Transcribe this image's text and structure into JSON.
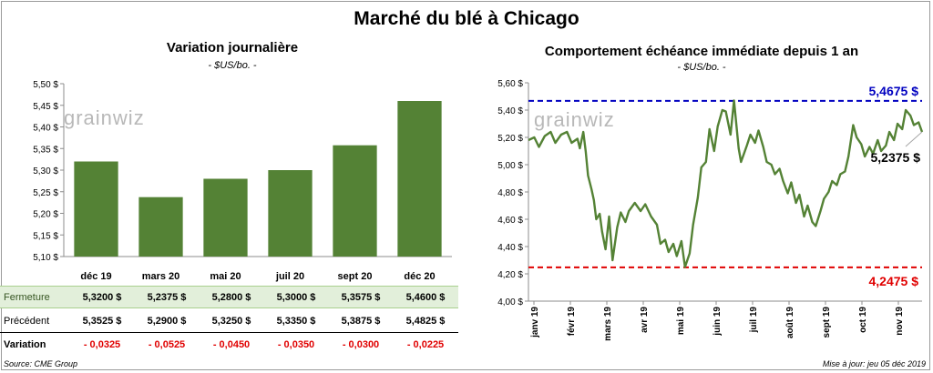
{
  "title": "Marché du blé à Chicago",
  "left": {
    "title": "Variation journalière",
    "unit": "- $US/bo. -",
    "watermark": "grainwiz",
    "row_labels": {
      "close": "Fermeture",
      "prev": "Précédent",
      "var": "Variation"
    },
    "close_values": [
      "5,3200  $",
      "5,2375  $",
      "5,2800  $",
      "5,3000  $",
      "5,3575  $",
      "5,4600  $"
    ],
    "prev_values": [
      "5,3525  $",
      "5,2900  $",
      "5,3250  $",
      "5,3350  $",
      "5,3875  $",
      "5,4825  $"
    ],
    "var_values": [
      "- 0,0325",
      "- 0,0525",
      "- 0,0450",
      "- 0,0350",
      "- 0,0300",
      "- 0,0225"
    ]
  },
  "right": {
    "title": "Comportement  échéance immédiate depuis 1 an",
    "unit": "- $US/bo. -",
    "watermark": "grainwiz",
    "max_label": "5,4675  $",
    "min_label": "4,2475  $",
    "last_label": "5,2375  $"
  },
  "footer": {
    "source": "Source: CME Group",
    "updated": "Mise à jour: jeu 05 déc 2019"
  },
  "chart_data": [
    {
      "type": "bar",
      "title": "Variation journalière",
      "categories": [
        "déc 19",
        "mars 20",
        "mai 20",
        "juil 20",
        "sept 20",
        "déc 20"
      ],
      "values": [
        5.32,
        5.2375,
        5.28,
        5.3,
        5.3575,
        5.46
      ],
      "ylim": [
        5.1,
        5.5
      ],
      "yticks": [
        "5,10 $",
        "5,15 $",
        "5,20 $",
        "5,25 $",
        "5,30 $",
        "5,35 $",
        "5,40 $",
        "5,45 $",
        "5,50 $"
      ],
      "colors": {
        "bar": "#548235"
      },
      "grid": false
    },
    {
      "type": "line",
      "title": "Comportement  échéance immédiate depuis 1 an",
      "ylim": [
        4.0,
        5.6
      ],
      "yticks": [
        "4,00 $",
        "4,20 $",
        "4,40 $",
        "4,60 $",
        "4,80 $",
        "5,00 $",
        "5,20 $",
        "5,40 $",
        "5,60 $"
      ],
      "xticks": [
        "janv 19",
        "févr 19",
        "mars 19",
        "avr 19",
        "mai 19",
        "juin 19",
        "juil 19",
        "août 19",
        "sept 19",
        "oct 19",
        "nov 19"
      ],
      "x_start": "2019-01-02",
      "x_end": "2019-12-05",
      "max": 5.4675,
      "min": 4.2475,
      "last": 5.2375,
      "colors": {
        "line": "#548235",
        "max": "#0000c0",
        "min": "#e00000"
      },
      "grid": false,
      "series": [
        {
          "values": [
            [
              "2019-01-02",
              5.18
            ],
            [
              "2019-01-07",
              5.2
            ],
            [
              "2019-01-11",
              5.13
            ],
            [
              "2019-01-16",
              5.21
            ],
            [
              "2019-01-21",
              5.24
            ],
            [
              "2019-01-25",
              5.16
            ],
            [
              "2019-01-30",
              5.22
            ],
            [
              "2019-02-04",
              5.24
            ],
            [
              "2019-02-08",
              5.16
            ],
            [
              "2019-02-13",
              5.19
            ],
            [
              "2019-02-15",
              5.12
            ],
            [
              "2019-02-18",
              5.24
            ],
            [
              "2019-02-20",
              5.1
            ],
            [
              "2019-02-22",
              4.92
            ],
            [
              "2019-02-25",
              4.82
            ],
            [
              "2019-02-27",
              4.74
            ],
            [
              "2019-03-01",
              4.6
            ],
            [
              "2019-03-04",
              4.64
            ],
            [
              "2019-03-06",
              4.51
            ],
            [
              "2019-03-09",
              4.38
            ],
            [
              "2019-03-12",
              4.62
            ],
            [
              "2019-03-15",
              4.3
            ],
            [
              "2019-03-19",
              4.54
            ],
            [
              "2019-03-22",
              4.65
            ],
            [
              "2019-03-26",
              4.58
            ],
            [
              "2019-03-29",
              4.66
            ],
            [
              "2019-04-03",
              4.72
            ],
            [
              "2019-04-08",
              4.66
            ],
            [
              "2019-04-12",
              4.71
            ],
            [
              "2019-04-17",
              4.62
            ],
            [
              "2019-04-22",
              4.56
            ],
            [
              "2019-04-25",
              4.42
            ],
            [
              "2019-04-29",
              4.45
            ],
            [
              "2019-05-02",
              4.36
            ],
            [
              "2019-05-06",
              4.42
            ],
            [
              "2019-05-09",
              4.33
            ],
            [
              "2019-05-13",
              4.44
            ],
            [
              "2019-05-16",
              4.25
            ],
            [
              "2019-05-20",
              4.35
            ],
            [
              "2019-05-23",
              4.56
            ],
            [
              "2019-05-27",
              4.76
            ],
            [
              "2019-05-30",
              4.98
            ],
            [
              "2019-06-03",
              5.02
            ],
            [
              "2019-06-06",
              5.26
            ],
            [
              "2019-06-10",
              5.1
            ],
            [
              "2019-06-13",
              5.28
            ],
            [
              "2019-06-17",
              5.4
            ],
            [
              "2019-06-20",
              5.39
            ],
            [
              "2019-06-24",
              5.22
            ],
            [
              "2019-06-27",
              5.47
            ],
            [
              "2019-07-01",
              5.12
            ],
            [
              "2019-07-03",
              5.02
            ],
            [
              "2019-07-08",
              5.14
            ],
            [
              "2019-07-11",
              5.22
            ],
            [
              "2019-07-15",
              5.16
            ],
            [
              "2019-07-18",
              5.25
            ],
            [
              "2019-07-22",
              5.13
            ],
            [
              "2019-07-25",
              5.02
            ],
            [
              "2019-07-29",
              5.0
            ],
            [
              "2019-08-01",
              4.93
            ],
            [
              "2019-08-05",
              4.97
            ],
            [
              "2019-08-08",
              4.88
            ],
            [
              "2019-08-12",
              4.79
            ],
            [
              "2019-08-15",
              4.87
            ],
            [
              "2019-08-19",
              4.72
            ],
            [
              "2019-08-22",
              4.78
            ],
            [
              "2019-08-26",
              4.62
            ],
            [
              "2019-08-29",
              4.7
            ],
            [
              "2019-09-02",
              4.58
            ],
            [
              "2019-09-05",
              4.55
            ],
            [
              "2019-09-09",
              4.66
            ],
            [
              "2019-09-12",
              4.75
            ],
            [
              "2019-09-16",
              4.8
            ],
            [
              "2019-09-19",
              4.88
            ],
            [
              "2019-09-23",
              4.85
            ],
            [
              "2019-09-26",
              4.93
            ],
            [
              "2019-09-30",
              4.95
            ],
            [
              "2019-10-03",
              5.06
            ],
            [
              "2019-10-07",
              5.29
            ],
            [
              "2019-10-10",
              5.2
            ],
            [
              "2019-10-14",
              5.15
            ],
            [
              "2019-10-17",
              5.06
            ],
            [
              "2019-10-21",
              5.13
            ],
            [
              "2019-10-24",
              5.08
            ],
            [
              "2019-10-28",
              5.18
            ],
            [
              "2019-10-31",
              5.1
            ],
            [
              "2019-11-04",
              5.14
            ],
            [
              "2019-11-07",
              5.24
            ],
            [
              "2019-11-11",
              5.18
            ],
            [
              "2019-11-14",
              5.3
            ],
            [
              "2019-11-18",
              5.26
            ],
            [
              "2019-11-21",
              5.4
            ],
            [
              "2019-11-25",
              5.36
            ],
            [
              "2019-11-28",
              5.29
            ],
            [
              "2019-12-02",
              5.31
            ],
            [
              "2019-12-05",
              5.24
            ]
          ]
        }
      ]
    }
  ]
}
